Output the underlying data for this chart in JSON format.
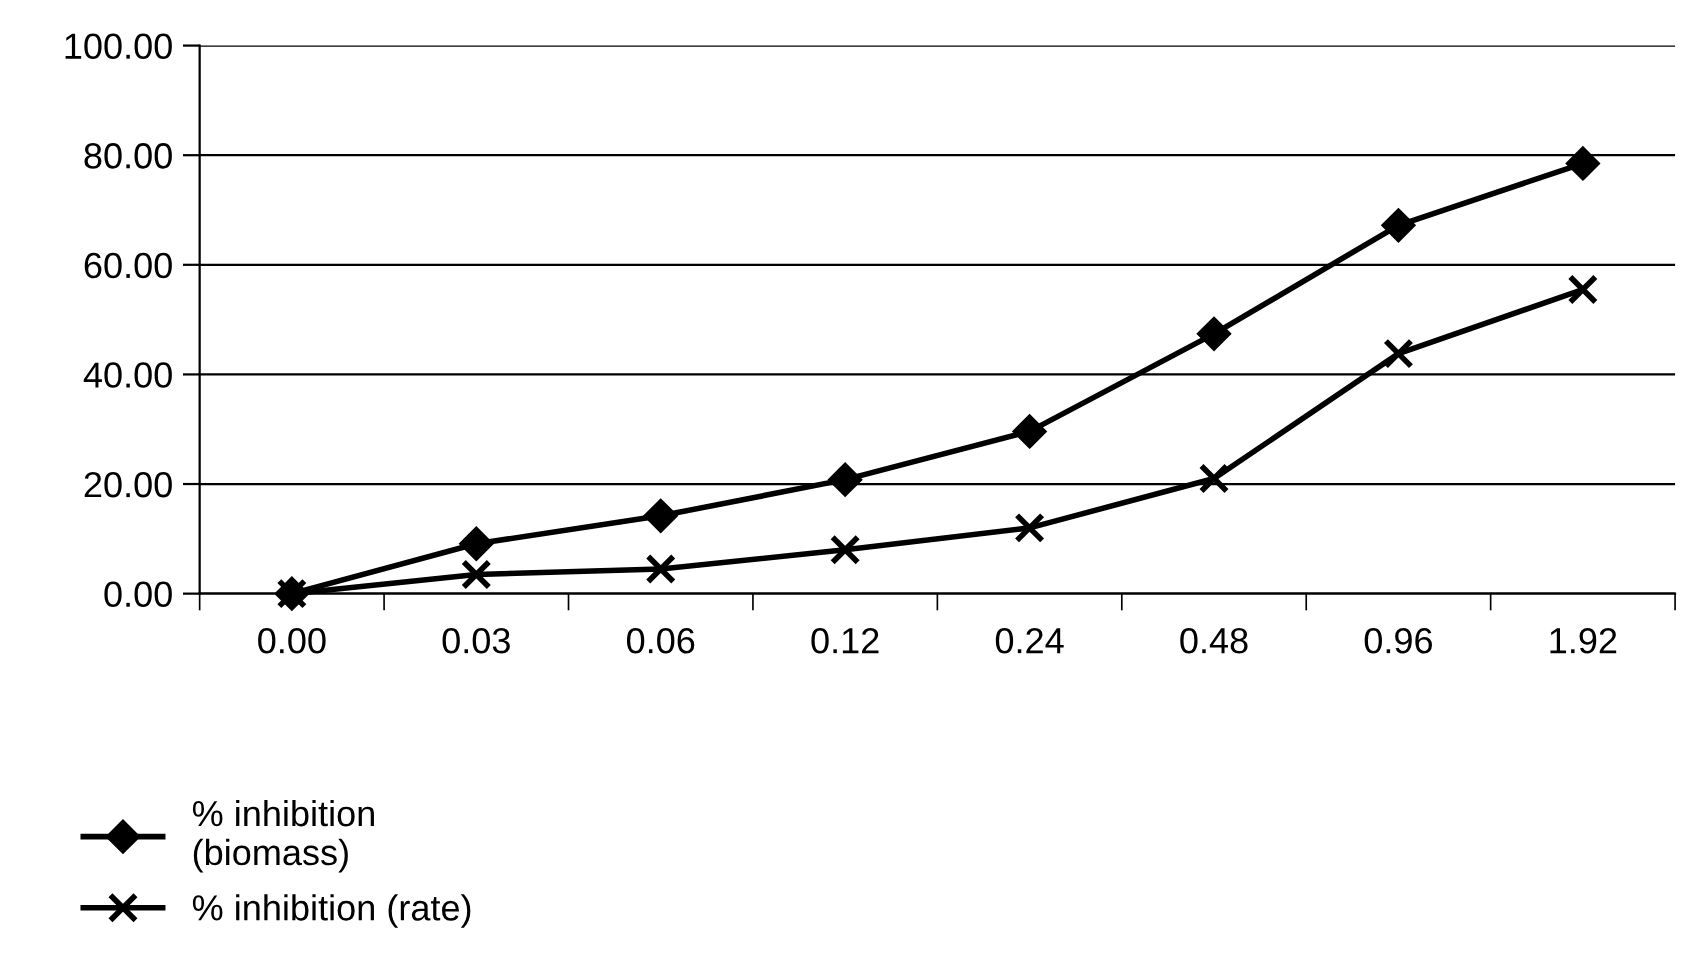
{
  "chart_data": {
    "type": "line",
    "categories": [
      "0.00",
      "0.03",
      "0.06",
      "0.12",
      "0.24",
      "0.48",
      "0.96",
      "1.92"
    ],
    "series": [
      {
        "name": "% inhibition\n(biomass)",
        "color": "#000000",
        "marker": "diamond",
        "values": [
          0,
          9.1,
          14.2,
          20.8,
          29.6,
          47.4,
          67.2,
          78.5
        ]
      },
      {
        "name": "% inhibition (rate)",
        "color": "#000000",
        "marker": "cross",
        "values": [
          0,
          3.5,
          4.5,
          8,
          12,
          21,
          43.8,
          55.5
        ]
      }
    ],
    "ylim": [
      0,
      100
    ],
    "yticks": [
      {
        "value": 0,
        "label": "0.00"
      },
      {
        "value": 20,
        "label": "20.00"
      },
      {
        "value": 40,
        "label": "40.00"
      },
      {
        "value": 60,
        "label": "60.00"
      },
      {
        "value": 80,
        "label": "80.00"
      },
      {
        "value": 100,
        "label": "100.00"
      }
    ],
    "grid": "y",
    "legend": "bottom left",
    "line_style": "solid"
  }
}
